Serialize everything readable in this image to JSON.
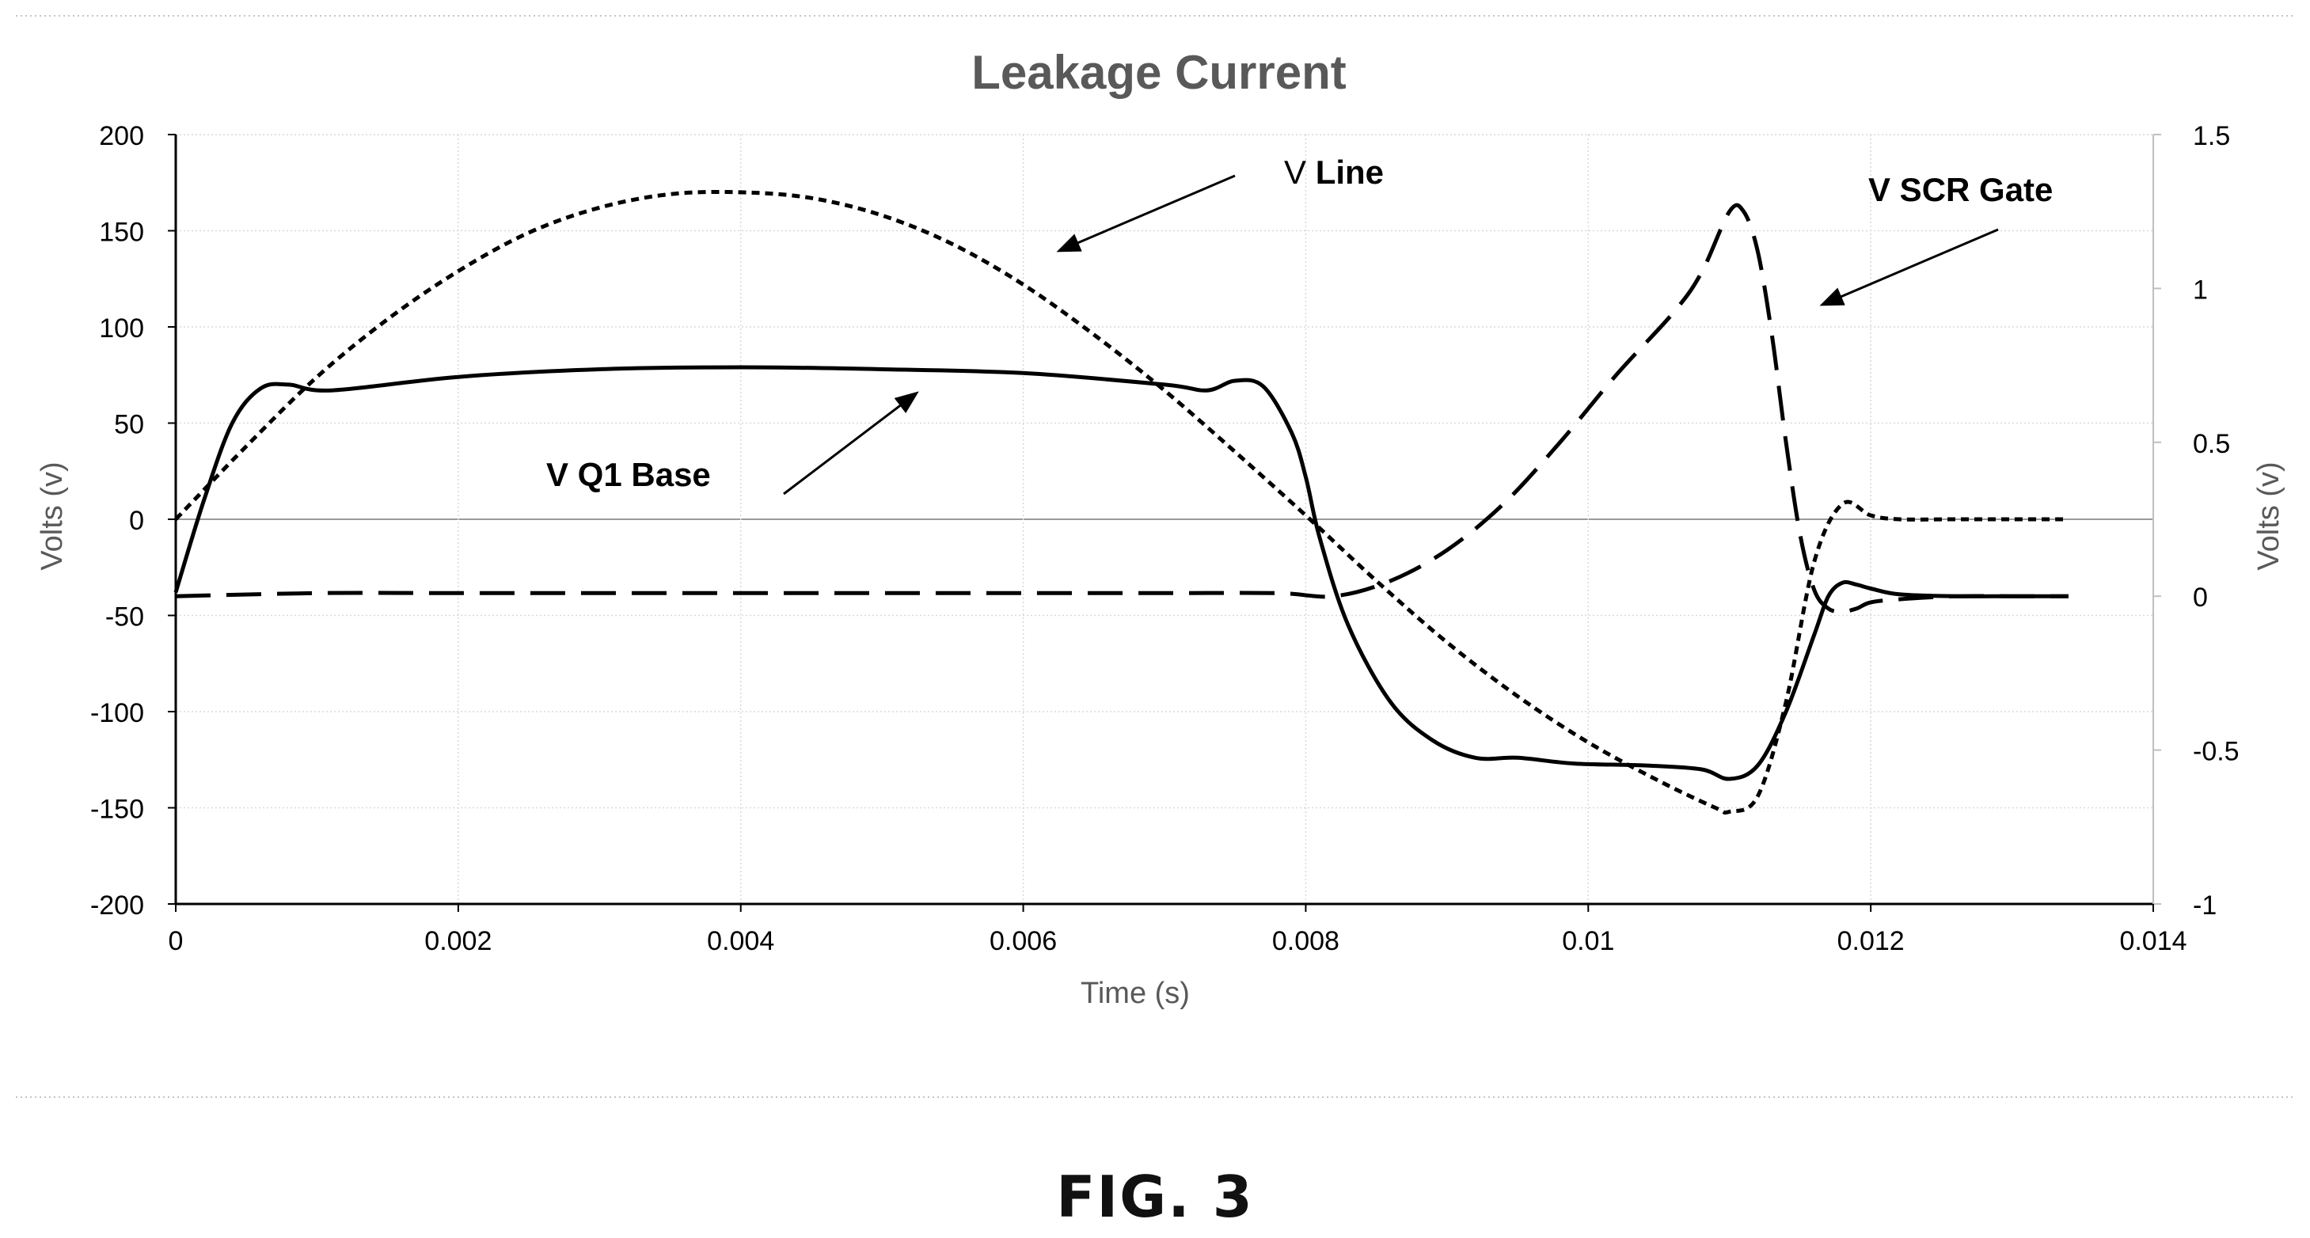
{
  "figure_label": "FIG. 3",
  "chart_data": {
    "type": "line",
    "title": "Leakage Current",
    "xlabel": "Time (s)",
    "ylabel_left": "Volts (v)",
    "ylabel_right": "Volts (v)",
    "xlim": [
      0,
      0.014
    ],
    "ylim_left": [
      -200,
      200
    ],
    "ylim_right": [
      -1,
      1.5
    ],
    "x_ticks": [
      0,
      0.002,
      0.004,
      0.006,
      0.008,
      0.01,
      0.012,
      0.014
    ],
    "x_tick_labels": [
      "0",
      "0.002",
      "0.004",
      "0.006",
      "0.008",
      "0.01",
      "0.012",
      "0.014"
    ],
    "y_left_ticks": [
      200,
      150,
      100,
      50,
      0,
      -50,
      -100,
      -150,
      -200
    ],
    "y_left_tick_labels": [
      "200",
      "150",
      "100",
      "50",
      "0",
      "-50",
      "-100",
      "-150",
      "-200"
    ],
    "y_right_ticks": [
      1.5,
      1,
      0.5,
      0,
      -0.5,
      -1
    ],
    "y_right_tick_labels": [
      "1.5",
      "1",
      "0.5",
      "0",
      "-0.5",
      "-1"
    ],
    "grid": true,
    "series": [
      {
        "name": "V Line",
        "label_prefix": "V",
        "label_bold": "Line",
        "axis": "left",
        "style": "dotted",
        "color": "#000000",
        "x": [
          0,
          0.0005,
          0.001,
          0.0015,
          0.002,
          0.0025,
          0.003,
          0.0035,
          0.004,
          0.0045,
          0.005,
          0.0055,
          0.006,
          0.0065,
          0.007,
          0.0075,
          0.008,
          0.0085,
          0.009,
          0.0095,
          0.01,
          0.0105,
          0.0109,
          0.011,
          0.0112,
          0.0114,
          0.0116,
          0.0118,
          0.012,
          0.0122,
          0.0126,
          0.013,
          0.0134
        ],
        "y": [
          0,
          38,
          74,
          104,
          129,
          149,
          162,
          169,
          170,
          167,
          158,
          143,
          122,
          96,
          67,
          35,
          2,
          -32,
          -64,
          -92,
          -116,
          -136,
          -150,
          -152,
          -144,
          -95,
          -22,
          8,
          2,
          0,
          0,
          0,
          0
        ]
      },
      {
        "name": "V Q1 Base",
        "label": "V Q1 Base",
        "axis": "left",
        "style": "solid",
        "color": "#000000",
        "x": [
          0,
          0.0002,
          0.0004,
          0.0006,
          0.0008,
          0.0011,
          0.002,
          0.003,
          0.004,
          0.005,
          0.006,
          0.007,
          0.0073,
          0.0075,
          0.0077,
          0.0079,
          0.008,
          0.0081,
          0.0083,
          0.0086,
          0.0089,
          0.0092,
          0.0095,
          0.0099,
          0.0104,
          0.0108,
          0.011,
          0.0112,
          0.0114,
          0.0116,
          0.0117,
          0.0118,
          0.0119,
          0.012,
          0.0122,
          0.0126,
          0.013,
          0.0134
        ],
        "y": [
          -38,
          10,
          50,
          68,
          70,
          67,
          74,
          78,
          79,
          78,
          76,
          70,
          67,
          72,
          69,
          45,
          22,
          -10,
          -55,
          -95,
          -115,
          -124,
          -124,
          -127,
          -128,
          -130,
          -135,
          -128,
          -100,
          -60,
          -40,
          -33,
          -34,
          -36,
          -39,
          -40,
          -40,
          -40
        ]
      },
      {
        "name": "V SCR Gate",
        "label": "V SCR Gate",
        "axis": "right",
        "style": "dashed",
        "color": "#000000",
        "x": [
          0,
          0.001,
          0.002,
          0.003,
          0.004,
          0.005,
          0.006,
          0.007,
          0.0078,
          0.0082,
          0.0086,
          0.009,
          0.0094,
          0.0098,
          0.0102,
          0.0106,
          0.0108,
          0.011,
          0.0111,
          0.0112,
          0.0113,
          0.0114,
          0.0115,
          0.0116,
          0.0117,
          0.0118,
          0.0119,
          0.012,
          0.0122,
          0.0126,
          0.013,
          0.0134
        ],
        "y": [
          0,
          0.01,
          0.01,
          0.01,
          0.01,
          0.01,
          0.01,
          0.01,
          0.01,
          0,
          0.05,
          0.15,
          0.3,
          0.5,
          0.72,
          0.92,
          1.05,
          1.25,
          1.25,
          1.12,
          0.85,
          0.5,
          0.2,
          0.02,
          -0.04,
          -0.05,
          -0.04,
          -0.02,
          -0.01,
          0,
          0,
          0
        ]
      }
    ]
  }
}
